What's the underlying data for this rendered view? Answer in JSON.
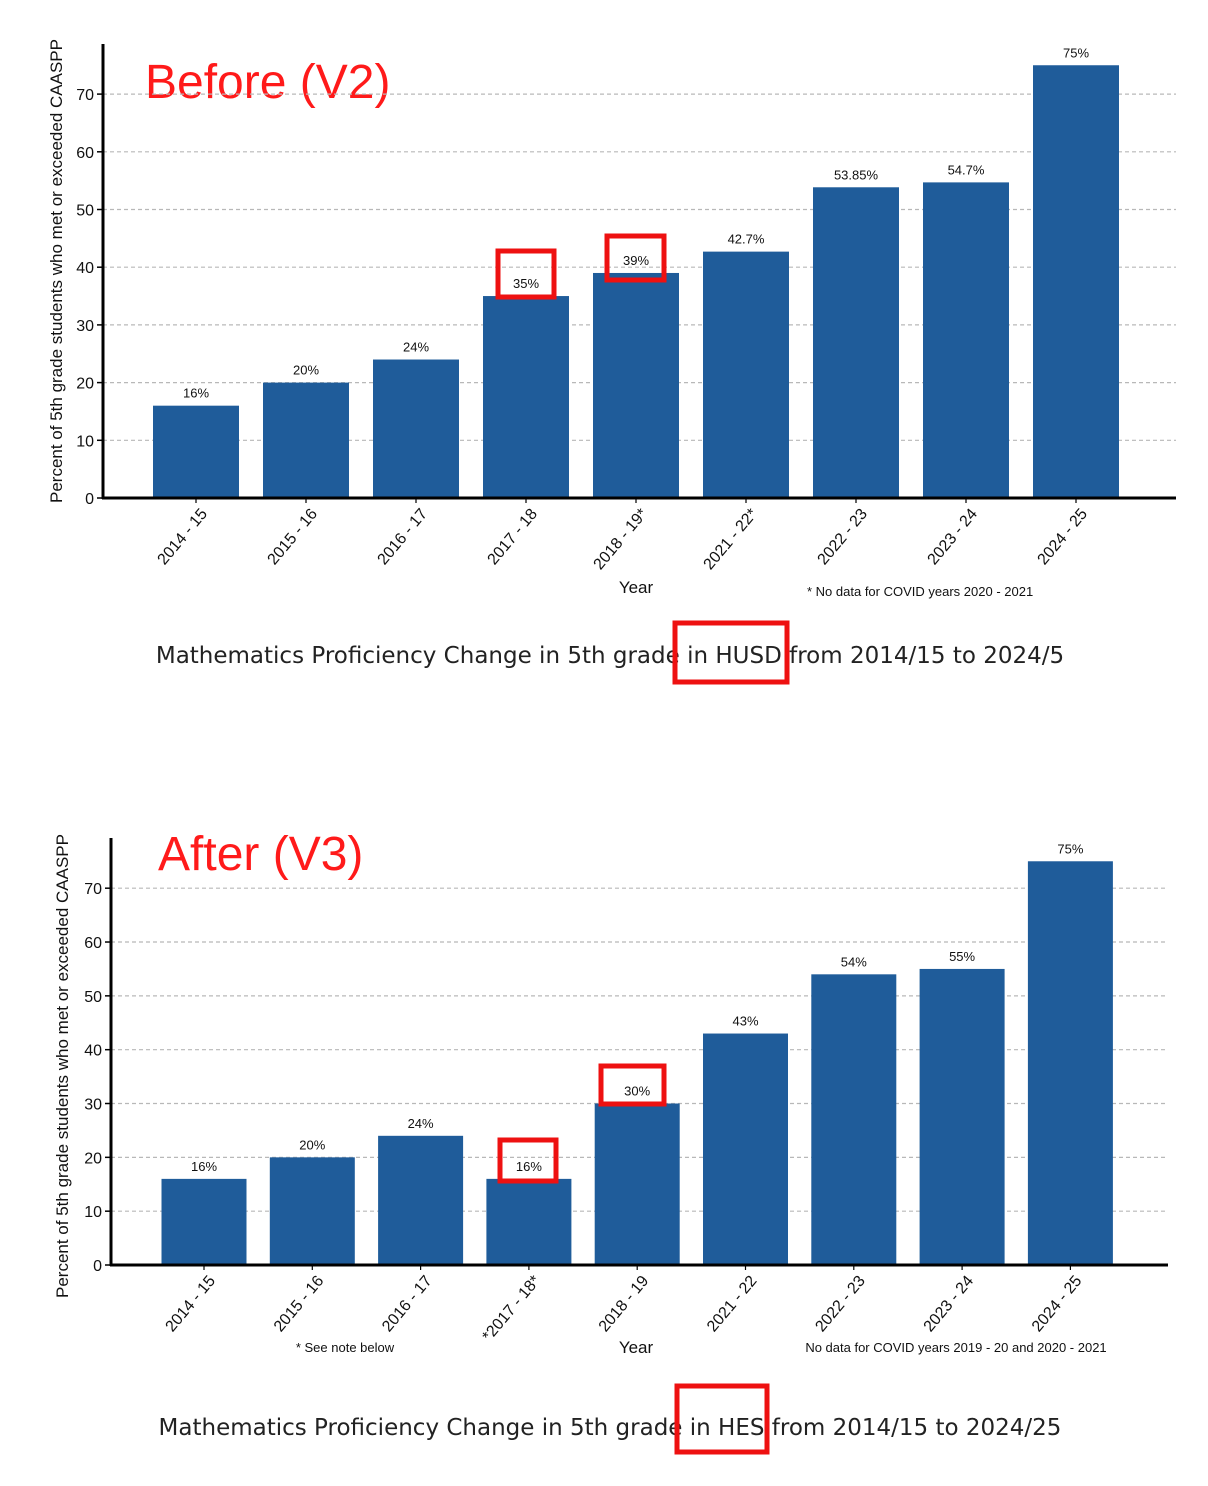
{
  "colors": {
    "bar": "#1f5c9a",
    "highlight": "#ee1111",
    "grid": "#b8b8b8",
    "axis": "#000000",
    "version_label": "#ff1a1a"
  },
  "chart_data": [
    {
      "type": "bar",
      "version_label": "Before (V2)",
      "categories": [
        "2014 - 15",
        "2015 - 16",
        "2016 - 17",
        "2017 - 18",
        "2018 - 19*",
        "2021 - 22*",
        "2022 - 23",
        "2023 - 24",
        "2024 - 25"
      ],
      "values": [
        16,
        20,
        24,
        35,
        39,
        42.7,
        53.85,
        54.7,
        75
      ],
      "value_labels": [
        "16%",
        "20%",
        "24%",
        "35%",
        "39%",
        "42.7%",
        "53.85%",
        "54.7%",
        "75%"
      ],
      "highlighted_indices": [
        3,
        4
      ],
      "xlabel": "Year",
      "ylabel": "Percent of 5th grade students who met or exceeded  CAASPP",
      "yticks": [
        0,
        10,
        20,
        30,
        40,
        50,
        60,
        70
      ],
      "ylim": [
        0,
        79
      ],
      "grid": true,
      "notes": [
        "* No data for COVID years 2020 - 2021"
      ],
      "caption": {
        "before": "Mathematics Proficiency Change in 5th grade",
        "highlight": " in HUSD ",
        "after": "from 2014/15 to 2024/5"
      }
    },
    {
      "type": "bar",
      "version_label": "After (V3)",
      "categories": [
        "2014 - 15",
        "2015 - 16",
        "2016 - 17",
        "*2017 - 18*",
        "2018 - 19",
        "2021 - 22",
        "2022 - 23",
        "2023 - 24",
        "2024 - 25"
      ],
      "values": [
        16,
        20,
        24,
        16,
        30,
        43,
        54,
        55,
        75
      ],
      "value_labels": [
        "16%",
        "20%",
        "24%",
        "16%",
        "30%",
        "43%",
        "54%",
        "55%",
        "75%"
      ],
      "highlighted_indices": [
        3,
        4
      ],
      "xlabel": "Year",
      "ylabel": "Percent of 5th grade students who met or exceeded  CAASPP",
      "yticks": [
        0,
        10,
        20,
        30,
        40,
        50,
        60,
        70
      ],
      "ylim": [
        0,
        79
      ],
      "grid": true,
      "notes": [
        "* See note below",
        "No data for COVID years 2019 - 20 and 2020 - 2021"
      ],
      "caption": {
        "before": "Mathematics Proficiency Change in 5th grade",
        "highlight": " in HES ",
        "after": "from 2014/15 to 2024/25"
      }
    }
  ]
}
